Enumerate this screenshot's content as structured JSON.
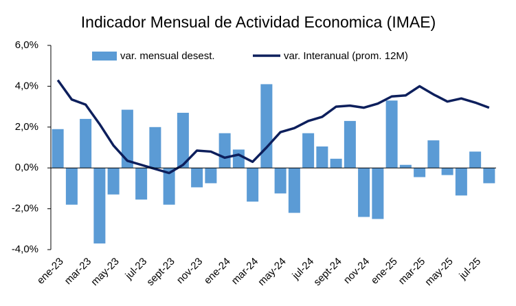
{
  "chart_data": {
    "type": "bar_line",
    "title": "Indicador Mensual de Actividad Economica (IMAE)",
    "categories": [
      "ene-23",
      null,
      "mar-23",
      null,
      "may-23",
      null,
      "jul-23",
      null,
      "sept-23",
      null,
      "nov-23",
      null,
      "ene-24",
      null,
      "mar-24",
      null,
      "may-24",
      null,
      "jul-24",
      null,
      "sept-24",
      null,
      "nov-24",
      null,
      "ene-25",
      null,
      "mar-25",
      null,
      "may-25",
      null,
      "jul-25",
      null
    ],
    "series": [
      {
        "name": "var. mensual desest.",
        "color": "#5b9bd5",
        "kind": "bar",
        "values": [
          1.9,
          -1.8,
          2.4,
          -3.7,
          -1.3,
          2.85,
          -1.55,
          2.0,
          -1.8,
          2.7,
          -0.95,
          -0.75,
          1.7,
          0.9,
          -1.65,
          4.1,
          -1.25,
          -2.2,
          1.7,
          1.05,
          0.45,
          2.3,
          -2.4,
          -2.5,
          3.3,
          0.15,
          -0.45,
          1.35,
          -0.35,
          -1.35,
          0.8,
          -0.75
        ]
      },
      {
        "name": "var. Interanual (prom. 12M)",
        "color": "#0d1f5c",
        "kind": "line",
        "values": [
          4.3,
          3.35,
          3.1,
          2.15,
          1.1,
          0.35,
          0.15,
          -0.05,
          -0.25,
          0.15,
          0.85,
          0.8,
          0.5,
          0.65,
          0.3,
          1.0,
          1.75,
          1.95,
          2.3,
          2.5,
          3.0,
          3.05,
          2.95,
          3.15,
          3.5,
          3.55,
          4.0,
          3.6,
          3.25,
          3.4,
          3.2,
          2.95
        ]
      }
    ],
    "ylim": [
      -4,
      6
    ],
    "yticks": [
      {
        "value": -4,
        "label": "-4,0%"
      },
      {
        "value": -2,
        "label": "-2,0%"
      },
      {
        "value": 0,
        "label": "0,0%"
      },
      {
        "value": 2,
        "label": "2,0%"
      },
      {
        "value": 4,
        "label": "4,0%"
      },
      {
        "value": 6,
        "label": "6,0%"
      }
    ],
    "legend": "top"
  }
}
